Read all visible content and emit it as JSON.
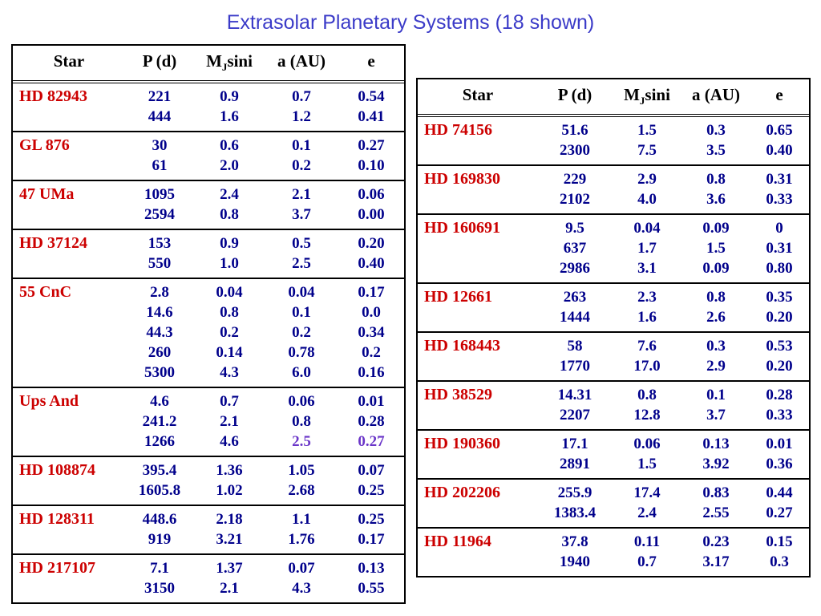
{
  "title": "Extrasolar Planetary Systems (18 shown)",
  "colors": {
    "title": "#3b3bc8",
    "star": "#cc0000",
    "value": "#00008b",
    "highlight": "#6a35c8",
    "border": "#000000"
  },
  "header": {
    "star": "Star",
    "p": "P (d)",
    "m_pre": "M",
    "m_sub": "J",
    "m_post": "sini",
    "a": "a (AU)",
    "e": "e"
  },
  "left_table": {
    "groups": [
      {
        "star": "HD 82943",
        "planets": [
          [
            "221",
            "0.9",
            "0.7",
            "0.54"
          ],
          [
            "444",
            "1.6",
            "1.2",
            "0.41"
          ]
        ]
      },
      {
        "star": "GL 876",
        "planets": [
          [
            "30",
            "0.6",
            "0.1",
            "0.27"
          ],
          [
            "61",
            "2.0",
            "0.2",
            "0.10"
          ]
        ]
      },
      {
        "star": "47 UMa",
        "planets": [
          [
            "1095",
            "2.4",
            "2.1",
            "0.06"
          ],
          [
            "2594",
            "0.8",
            "3.7",
            "0.00"
          ]
        ]
      },
      {
        "star": "HD 37124",
        "planets": [
          [
            "153",
            "0.9",
            "0.5",
            "0.20"
          ],
          [
            "550",
            "1.0",
            "2.5",
            "0.40"
          ]
        ]
      },
      {
        "star": "55 CnC",
        "planets": [
          [
            "2.8",
            "0.04",
            "0.04",
            "0.17"
          ],
          [
            "14.6",
            "0.8",
            "0.1",
            "0.0"
          ],
          [
            "44.3",
            "0.2",
            "0.2",
            "0.34"
          ],
          [
            "260",
            "0.14",
            "0.78",
            "0.2"
          ],
          [
            "5300",
            "4.3",
            "6.0",
            "0.16"
          ]
        ]
      },
      {
        "star": "Ups And",
        "planets": [
          [
            "4.6",
            "0.7",
            "0.06",
            "0.01"
          ],
          [
            "241.2",
            "2.1",
            "0.8",
            "0.28"
          ],
          [
            "1266",
            "4.6",
            {
              "t": "2.5",
              "hl": true
            },
            {
              "t": "0.27",
              "hl": true
            }
          ]
        ]
      },
      {
        "star": "HD 108874",
        "planets": [
          [
            "395.4",
            "1.36",
            "1.05",
            "0.07"
          ],
          [
            "1605.8",
            "1.02",
            "2.68",
            "0.25"
          ]
        ]
      },
      {
        "star": "HD 128311",
        "planets": [
          [
            "448.6",
            "2.18",
            "1.1",
            "0.25"
          ],
          [
            "919",
            "3.21",
            "1.76",
            "0.17"
          ]
        ]
      },
      {
        "star": "HD 217107",
        "planets": [
          [
            "7.1",
            "1.37",
            "0.07",
            "0.13"
          ],
          [
            "3150",
            "2.1",
            "4.3",
            "0.55"
          ]
        ]
      }
    ]
  },
  "right_table": {
    "groups": [
      {
        "star": "HD 74156",
        "planets": [
          [
            "51.6",
            "1.5",
            "0.3",
            "0.65"
          ],
          [
            "2300",
            "7.5",
            "3.5",
            "0.40"
          ]
        ]
      },
      {
        "star": "HD 169830",
        "planets": [
          [
            "229",
            "2.9",
            "0.8",
            "0.31"
          ],
          [
            "2102",
            "4.0",
            "3.6",
            "0.33"
          ]
        ]
      },
      {
        "star": "HD 160691",
        "planets": [
          [
            "9.5",
            "0.04",
            "0.09",
            "0"
          ],
          [
            "637",
            "1.7",
            "1.5",
            "0.31"
          ],
          [
            "2986",
            "3.1",
            "0.09",
            "0.80"
          ]
        ]
      },
      {
        "star": "HD 12661",
        "planets": [
          [
            "263",
            "2.3",
            "0.8",
            "0.35"
          ],
          [
            "1444",
            "1.6",
            "2.6",
            "0.20"
          ]
        ]
      },
      {
        "star": "HD 168443",
        "planets": [
          [
            "58",
            "7.6",
            "0.3",
            "0.53"
          ],
          [
            "1770",
            "17.0",
            "2.9",
            "0.20"
          ]
        ]
      },
      {
        "star": "HD 38529",
        "planets": [
          [
            "14.31",
            "0.8",
            "0.1",
            "0.28"
          ],
          [
            "2207",
            "12.8",
            "3.7",
            "0.33"
          ]
        ]
      },
      {
        "star": "HD 190360",
        "planets": [
          [
            "17.1",
            "0.06",
            "0.13",
            "0.01"
          ],
          [
            "2891",
            "1.5",
            "3.92",
            "0.36"
          ]
        ]
      },
      {
        "star": "HD 202206",
        "planets": [
          [
            "255.9",
            "17.4",
            "0.83",
            "0.44"
          ],
          [
            "1383.4",
            "2.4",
            "2.55",
            "0.27"
          ]
        ]
      },
      {
        "star": "HD 11964",
        "planets": [
          [
            "37.8",
            "0.11",
            "0.23",
            "0.15"
          ],
          [
            "1940",
            "0.7",
            "3.17",
            "0.3"
          ]
        ]
      }
    ]
  }
}
